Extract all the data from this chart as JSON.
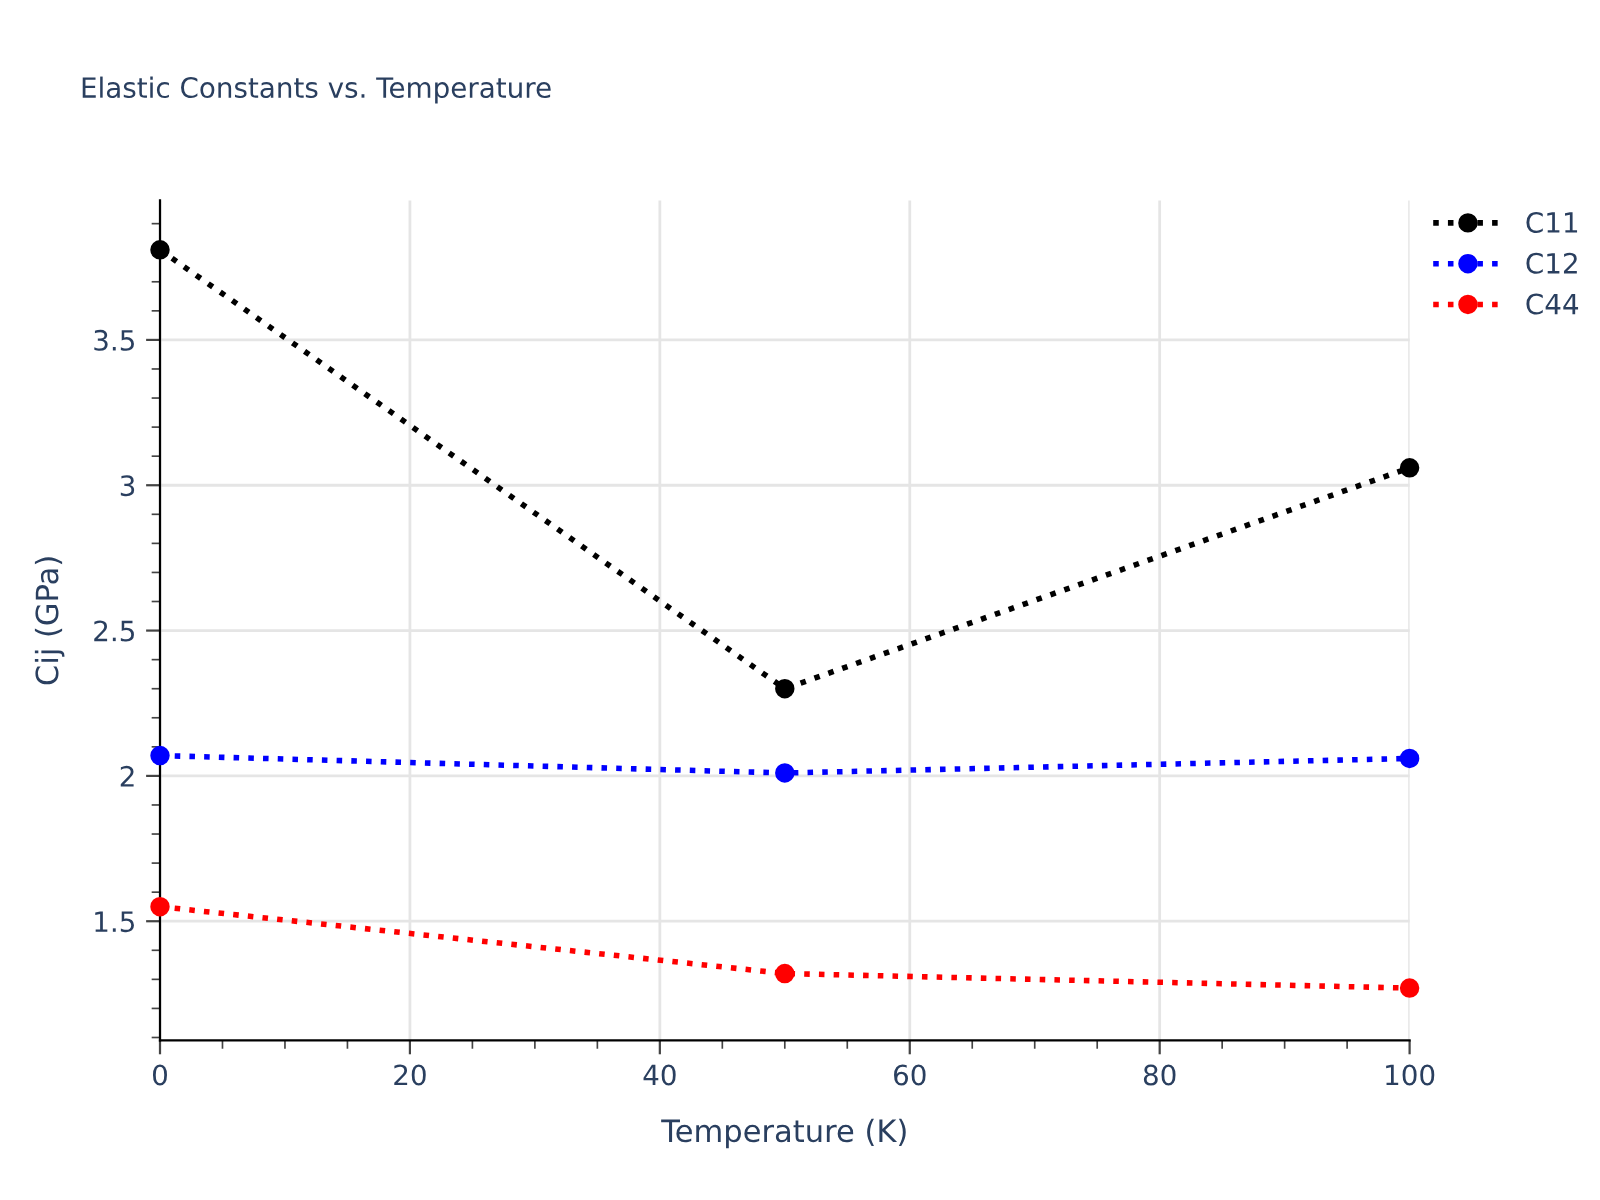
{
  "chart_data": {
    "type": "line",
    "title": "Elastic Constants vs. Temperature",
    "xlabel": "Temperature (K)",
    "ylabel": "Cij (GPa)",
    "x": [
      0,
      50,
      100
    ],
    "series": [
      {
        "name": "C11",
        "color": "#000000",
        "values": [
          3.81,
          2.3,
          3.06
        ]
      },
      {
        "name": "C12",
        "color": "#0000ff",
        "values": [
          2.07,
          2.01,
          2.06
        ]
      },
      {
        "name": "C44",
        "color": "#ff0000",
        "values": [
          1.55,
          1.32,
          1.27
        ]
      }
    ],
    "xlim": [
      0,
      100
    ],
    "xticks": [
      0,
      20,
      40,
      60,
      80,
      100
    ],
    "ylim": [
      1.09,
      3.98
    ],
    "yticks": [
      1.5,
      2,
      2.5,
      3,
      3.5
    ],
    "grid": true,
    "legend": "top right",
    "marker": "circle",
    "line_style": "dotted"
  }
}
